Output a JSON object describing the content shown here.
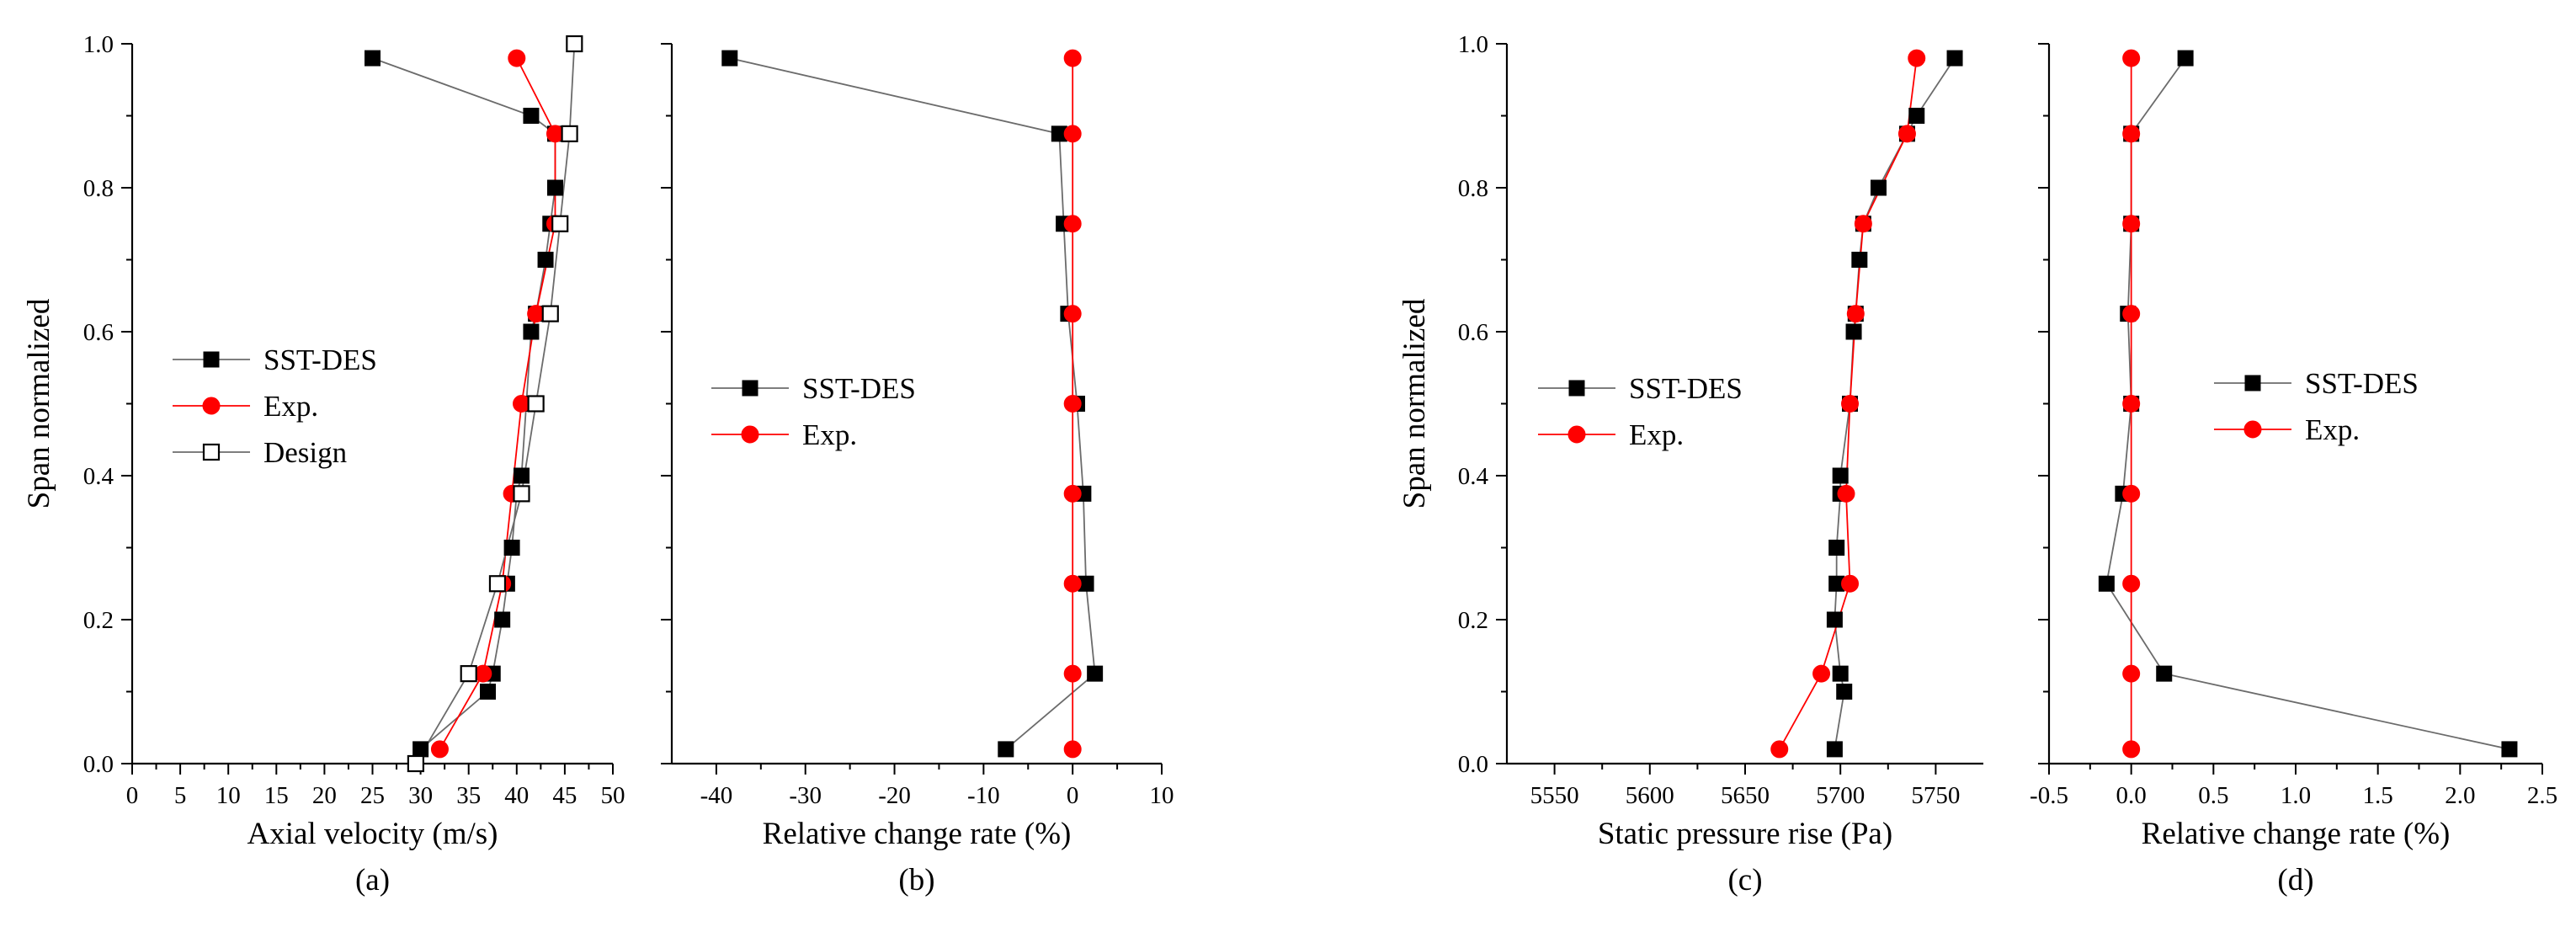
{
  "figure": {
    "y_label": "Span normalized",
    "y_ticks": [
      "0.0",
      "0.2",
      "0.4",
      "0.6",
      "0.8",
      "1.0"
    ]
  },
  "colors": {
    "sst_des": "#000000",
    "exp": "#ff0000",
    "design": "#000000"
  },
  "chart_data": [
    {
      "panel_label": "(a)",
      "type": "line",
      "xlabel": "Axial velocity (m/s)",
      "ylabel": "Span normalized",
      "xlim": [
        0,
        50
      ],
      "ylim": [
        0,
        1
      ],
      "x_ticks": [
        0,
        5,
        10,
        15,
        20,
        25,
        30,
        35,
        40,
        45,
        50
      ],
      "legend_position": "middle-left",
      "series": [
        {
          "name": "SST-DES",
          "marker": "square-filled",
          "points": [
            [
              30.0,
              0.02
            ],
            [
              37.0,
              0.1
            ],
            [
              37.5,
              0.125
            ],
            [
              38.5,
              0.2
            ],
            [
              39.0,
              0.25
            ],
            [
              39.5,
              0.3
            ],
            [
              40.0,
              0.375
            ],
            [
              40.5,
              0.4
            ],
            [
              41.0,
              0.5
            ],
            [
              41.5,
              0.6
            ],
            [
              42.0,
              0.625
            ],
            [
              43.0,
              0.7
            ],
            [
              43.5,
              0.75
            ],
            [
              44.0,
              0.8
            ],
            [
              44.0,
              0.875
            ],
            [
              41.5,
              0.9
            ],
            [
              25.0,
              0.98
            ]
          ]
        },
        {
          "name": "Exp.",
          "marker": "circle-filled",
          "points": [
            [
              32.0,
              0.02
            ],
            [
              36.5,
              0.125
            ],
            [
              38.5,
              0.25
            ],
            [
              39.5,
              0.375
            ],
            [
              40.5,
              0.5
            ],
            [
              42.0,
              0.625
            ],
            [
              44.0,
              0.75
            ],
            [
              44.0,
              0.875
            ],
            [
              40.0,
              0.98
            ]
          ]
        },
        {
          "name": "Design",
          "marker": "square-open",
          "points": [
            [
              29.5,
              0.0
            ],
            [
              35.0,
              0.125
            ],
            [
              38.0,
              0.25
            ],
            [
              40.5,
              0.375
            ],
            [
              42.0,
              0.5
            ],
            [
              43.5,
              0.625
            ],
            [
              44.5,
              0.75
            ],
            [
              45.5,
              0.875
            ],
            [
              46.0,
              1.0
            ]
          ]
        }
      ]
    },
    {
      "panel_label": "(b)",
      "type": "line",
      "xlabel": "Relative change rate (%)",
      "xlim": [
        -45,
        10
      ],
      "ylim": [
        0,
        1
      ],
      "x_ticks": [
        -40,
        -30,
        -20,
        -10,
        0,
        10
      ],
      "legend_position": "middle-left",
      "series": [
        {
          "name": "SST-DES",
          "marker": "square-filled",
          "points": [
            [
              -7.5,
              0.02
            ],
            [
              2.5,
              0.125
            ],
            [
              1.5,
              0.25
            ],
            [
              1.2,
              0.375
            ],
            [
              0.5,
              0.5
            ],
            [
              -0.5,
              0.625
            ],
            [
              -1.0,
              0.75
            ],
            [
              -1.5,
              0.875
            ],
            [
              -38.5,
              0.98
            ]
          ]
        },
        {
          "name": "Exp.",
          "marker": "circle-filled",
          "points": [
            [
              0,
              0.02
            ],
            [
              0,
              0.125
            ],
            [
              0,
              0.25
            ],
            [
              0,
              0.375
            ],
            [
              0,
              0.5
            ],
            [
              0,
              0.625
            ],
            [
              0,
              0.75
            ],
            [
              0,
              0.875
            ],
            [
              0,
              0.98
            ]
          ]
        }
      ]
    },
    {
      "panel_label": "(c)",
      "type": "line",
      "xlabel": "Static pressure rise (Pa)",
      "ylabel": "Span normalized",
      "xlim": [
        5525,
        5775
      ],
      "ylim": [
        0,
        1
      ],
      "x_ticks": [
        5550,
        5600,
        5650,
        5700,
        5750
      ],
      "legend_position": "middle-left",
      "series": [
        {
          "name": "SST-DES",
          "marker": "square-filled",
          "points": [
            [
              5697,
              0.02
            ],
            [
              5702,
              0.1
            ],
            [
              5700,
              0.125
            ],
            [
              5697,
              0.2
            ],
            [
              5698,
              0.25
            ],
            [
              5698,
              0.3
            ],
            [
              5700,
              0.375
            ],
            [
              5700,
              0.4
            ],
            [
              5705,
              0.5
            ],
            [
              5707,
              0.6
            ],
            [
              5708,
              0.625
            ],
            [
              5710,
              0.7
            ],
            [
              5712,
              0.75
            ],
            [
              5720,
              0.8
            ],
            [
              5735,
              0.875
            ],
            [
              5740,
              0.9
            ],
            [
              5760,
              0.98
            ]
          ]
        },
        {
          "name": "Exp.",
          "marker": "circle-filled",
          "points": [
            [
              5668,
              0.02
            ],
            [
              5690,
              0.125
            ],
            [
              5705,
              0.25
            ],
            [
              5703,
              0.375
            ],
            [
              5705,
              0.5
            ],
            [
              5708,
              0.625
            ],
            [
              5712,
              0.75
            ],
            [
              5735,
              0.875
            ],
            [
              5740,
              0.98
            ]
          ]
        }
      ]
    },
    {
      "panel_label": "(d)",
      "type": "line",
      "xlabel": "Relative change rate (%)",
      "xlim": [
        -0.5,
        2.5
      ],
      "ylim": [
        0,
        1
      ],
      "x_ticks": [
        "-0.5",
        "0.0",
        "0.5",
        "1.0",
        "1.5",
        "2.0",
        "2.5"
      ],
      "legend_position": "middle-right",
      "series": [
        {
          "name": "SST-DES",
          "marker": "square-filled",
          "points": [
            [
              2.3,
              0.02
            ],
            [
              0.2,
              0.125
            ],
            [
              -0.15,
              0.25
            ],
            [
              -0.05,
              0.375
            ],
            [
              0.0,
              0.5
            ],
            [
              -0.02,
              0.625
            ],
            [
              0.0,
              0.75
            ],
            [
              0.0,
              0.875
            ],
            [
              0.33,
              0.98
            ]
          ]
        },
        {
          "name": "Exp.",
          "marker": "circle-filled",
          "points": [
            [
              0,
              0.02
            ],
            [
              0,
              0.125
            ],
            [
              0,
              0.25
            ],
            [
              0,
              0.375
            ],
            [
              0,
              0.5
            ],
            [
              0,
              0.625
            ],
            [
              0,
              0.75
            ],
            [
              0,
              0.875
            ],
            [
              0,
              0.98
            ]
          ]
        }
      ]
    }
  ]
}
